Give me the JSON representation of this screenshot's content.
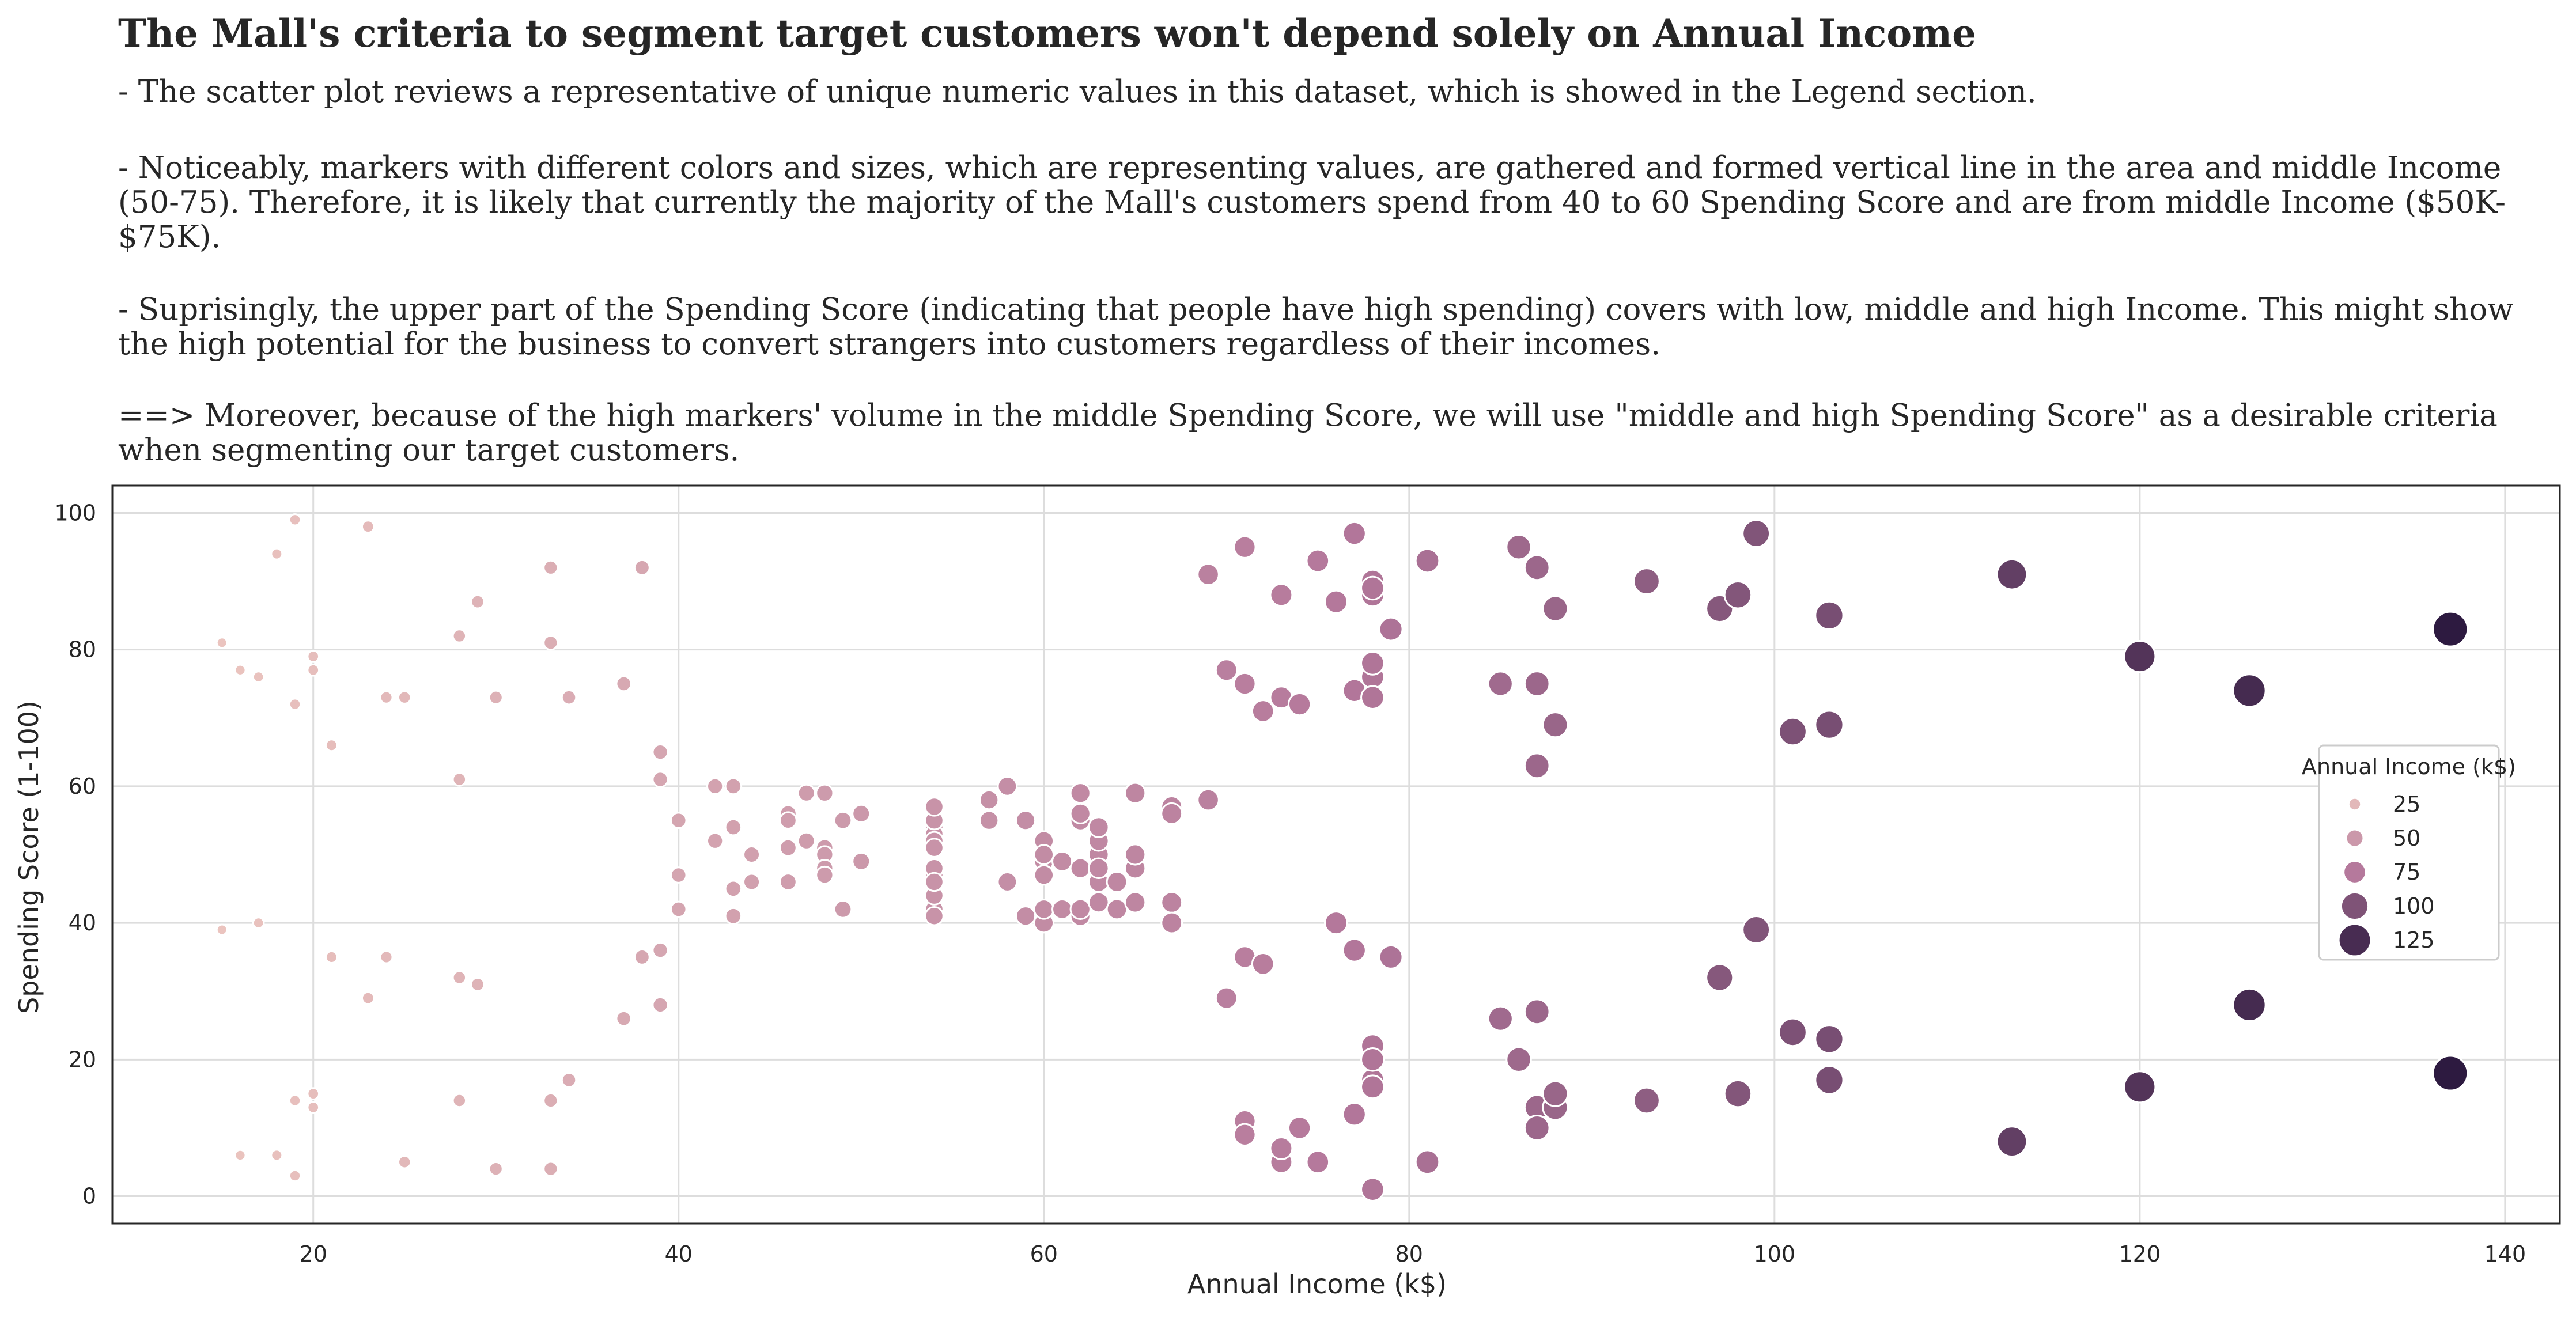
{
  "header": {
    "title": "The Mall's criteria to segment target customers won't depend solely on Annual Income",
    "paragraphs": [
      "-  The scatter plot reviews a representative of unique numeric values in this dataset, which is showed in the Legend section.",
      "-  Noticeably, markers with different colors and sizes, which are representing values, are gathered and formed vertical line in the area and middle Income (50-75). Therefore, it is likely that currently the majority of the Mall's customers spend from 40 to 60 Spending Score and are from middle Income ($50K- $75K).",
      "-  Suprisingly, the upper part of the Spending Score (indicating that people have high spending) covers with low, middle and high Income. This might show the high potential for the business to convert strangers into customers regardless of their incomes.",
      "==> Moreover, because of the high markers' volume in the middle Spending Score, we will use \"middle and high Spending Score\" as a desirable criteria when segmenting our target customers."
    ]
  },
  "chart_data": {
    "type": "scatter",
    "xlabel": "Annual Income (k$)",
    "ylabel": "Spending Score (1-100)",
    "xlim": [
      9,
      143
    ],
    "ylim": [
      -4,
      104
    ],
    "xticks": [
      20,
      40,
      60,
      80,
      100,
      120,
      140
    ],
    "yticks": [
      0,
      20,
      40,
      60,
      80,
      100
    ],
    "grid": true,
    "hue_and_size": "Annual Income (k$)",
    "color_low": "#ebc4bf",
    "color_high": "#2d1a40",
    "legend": {
      "title": "Annual Income (k$)",
      "placement": "center-right",
      "entries": [
        25,
        50,
        75,
        100,
        125
      ]
    },
    "points": [
      [
        15,
        39
      ],
      [
        15,
        81
      ],
      [
        16,
        6
      ],
      [
        16,
        77
      ],
      [
        17,
        40
      ],
      [
        17,
        76
      ],
      [
        18,
        6
      ],
      [
        18,
        94
      ],
      [
        19,
        3
      ],
      [
        19,
        72
      ],
      [
        19,
        14
      ],
      [
        19,
        99
      ],
      [
        20,
        15
      ],
      [
        20,
        77
      ],
      [
        20,
        13
      ],
      [
        20,
        79
      ],
      [
        21,
        35
      ],
      [
        21,
        66
      ],
      [
        23,
        29
      ],
      [
        23,
        98
      ],
      [
        24,
        35
      ],
      [
        24,
        73
      ],
      [
        25,
        5
      ],
      [
        25,
        73
      ],
      [
        28,
        14
      ],
      [
        28,
        82
      ],
      [
        28,
        32
      ],
      [
        28,
        61
      ],
      [
        29,
        31
      ],
      [
        29,
        87
      ],
      [
        30,
        4
      ],
      [
        30,
        73
      ],
      [
        33,
        4
      ],
      [
        33,
        92
      ],
      [
        33,
        14
      ],
      [
        33,
        81
      ],
      [
        34,
        17
      ],
      [
        34,
        73
      ],
      [
        37,
        26
      ],
      [
        37,
        75
      ],
      [
        38,
        35
      ],
      [
        38,
        92
      ],
      [
        39,
        36
      ],
      [
        39,
        61
      ],
      [
        39,
        28
      ],
      [
        39,
        65
      ],
      [
        40,
        55
      ],
      [
        40,
        47
      ],
      [
        40,
        42
      ],
      [
        42,
        52
      ],
      [
        42,
        60
      ],
      [
        43,
        54
      ],
      [
        43,
        60
      ],
      [
        43,
        45
      ],
      [
        43,
        41
      ],
      [
        44,
        50
      ],
      [
        44,
        46
      ],
      [
        46,
        51
      ],
      [
        46,
        46
      ],
      [
        46,
        56
      ],
      [
        46,
        55
      ],
      [
        47,
        52
      ],
      [
        47,
        59
      ],
      [
        48,
        51
      ],
      [
        48,
        59
      ],
      [
        48,
        50
      ],
      [
        48,
        48
      ],
      [
        48,
        47
      ],
      [
        49,
        55
      ],
      [
        49,
        42
      ],
      [
        50,
        49
      ],
      [
        50,
        56
      ],
      [
        54,
        47
      ],
      [
        54,
        54
      ],
      [
        54,
        53
      ],
      [
        54,
        48
      ],
      [
        54,
        52
      ],
      [
        54,
        42
      ],
      [
        54,
        51
      ],
      [
        54,
        55
      ],
      [
        54,
        41
      ],
      [
        54,
        44
      ],
      [
        54,
        57
      ],
      [
        54,
        46
      ],
      [
        57,
        58
      ],
      [
        57,
        55
      ],
      [
        58,
        60
      ],
      [
        58,
        46
      ],
      [
        59,
        55
      ],
      [
        59,
        41
      ],
      [
        60,
        49
      ],
      [
        60,
        40
      ],
      [
        60,
        42
      ],
      [
        60,
        52
      ],
      [
        60,
        47
      ],
      [
        60,
        50
      ],
      [
        61,
        42
      ],
      [
        61,
        49
      ],
      [
        62,
        41
      ],
      [
        62,
        48
      ],
      [
        62,
        59
      ],
      [
        62,
        55
      ],
      [
        62,
        56
      ],
      [
        62,
        42
      ],
      [
        63,
        50
      ],
      [
        63,
        46
      ],
      [
        63,
        43
      ],
      [
        63,
        48
      ],
      [
        63,
        52
      ],
      [
        63,
        54
      ],
      [
        64,
        42
      ],
      [
        64,
        46
      ],
      [
        65,
        48
      ],
      [
        65,
        50
      ],
      [
        65,
        43
      ],
      [
        65,
        59
      ],
      [
        67,
        43
      ],
      [
        67,
        57
      ],
      [
        67,
        56
      ],
      [
        67,
        40
      ],
      [
        69,
        58
      ],
      [
        69,
        91
      ],
      [
        70,
        29
      ],
      [
        70,
        77
      ],
      [
        71,
        35
      ],
      [
        71,
        95
      ],
      [
        71,
        11
      ],
      [
        71,
        75
      ],
      [
        71,
        9
      ],
      [
        71,
        75
      ],
      [
        72,
        34
      ],
      [
        72,
        71
      ],
      [
        73,
        5
      ],
      [
        73,
        88
      ],
      [
        73,
        7
      ],
      [
        73,
        73
      ],
      [
        74,
        10
      ],
      [
        74,
        72
      ],
      [
        75,
        5
      ],
      [
        75,
        93
      ],
      [
        76,
        40
      ],
      [
        76,
        87
      ],
      [
        77,
        12
      ],
      [
        77,
        97
      ],
      [
        77,
        36
      ],
      [
        77,
        74
      ],
      [
        78,
        22
      ],
      [
        78,
        90
      ],
      [
        78,
        17
      ],
      [
        78,
        88
      ],
      [
        78,
        20
      ],
      [
        78,
        76
      ],
      [
        78,
        16
      ],
      [
        78,
        89
      ],
      [
        78,
        1
      ],
      [
        78,
        78
      ],
      [
        78,
        1
      ],
      [
        78,
        73
      ],
      [
        79,
        35
      ],
      [
        79,
        83
      ],
      [
        81,
        5
      ],
      [
        81,
        93
      ],
      [
        85,
        26
      ],
      [
        85,
        75
      ],
      [
        86,
        20
      ],
      [
        86,
        95
      ],
      [
        87,
        27
      ],
      [
        87,
        63
      ],
      [
        87,
        13
      ],
      [
        87,
        75
      ],
      [
        87,
        10
      ],
      [
        87,
        92
      ],
      [
        88,
        13
      ],
      [
        88,
        86
      ],
      [
        88,
        15
      ],
      [
        88,
        69
      ],
      [
        93,
        14
      ],
      [
        93,
        90
      ],
      [
        97,
        32
      ],
      [
        97,
        86
      ],
      [
        98,
        15
      ],
      [
        98,
        88
      ],
      [
        99,
        39
      ],
      [
        99,
        97
      ],
      [
        101,
        24
      ],
      [
        101,
        68
      ],
      [
        103,
        17
      ],
      [
        103,
        85
      ],
      [
        103,
        23
      ],
      [
        103,
        69
      ],
      [
        113,
        8
      ],
      [
        113,
        91
      ],
      [
        120,
        16
      ],
      [
        120,
        79
      ],
      [
        126,
        28
      ],
      [
        126,
        74
      ],
      [
        137,
        18
      ],
      [
        137,
        83
      ]
    ]
  }
}
